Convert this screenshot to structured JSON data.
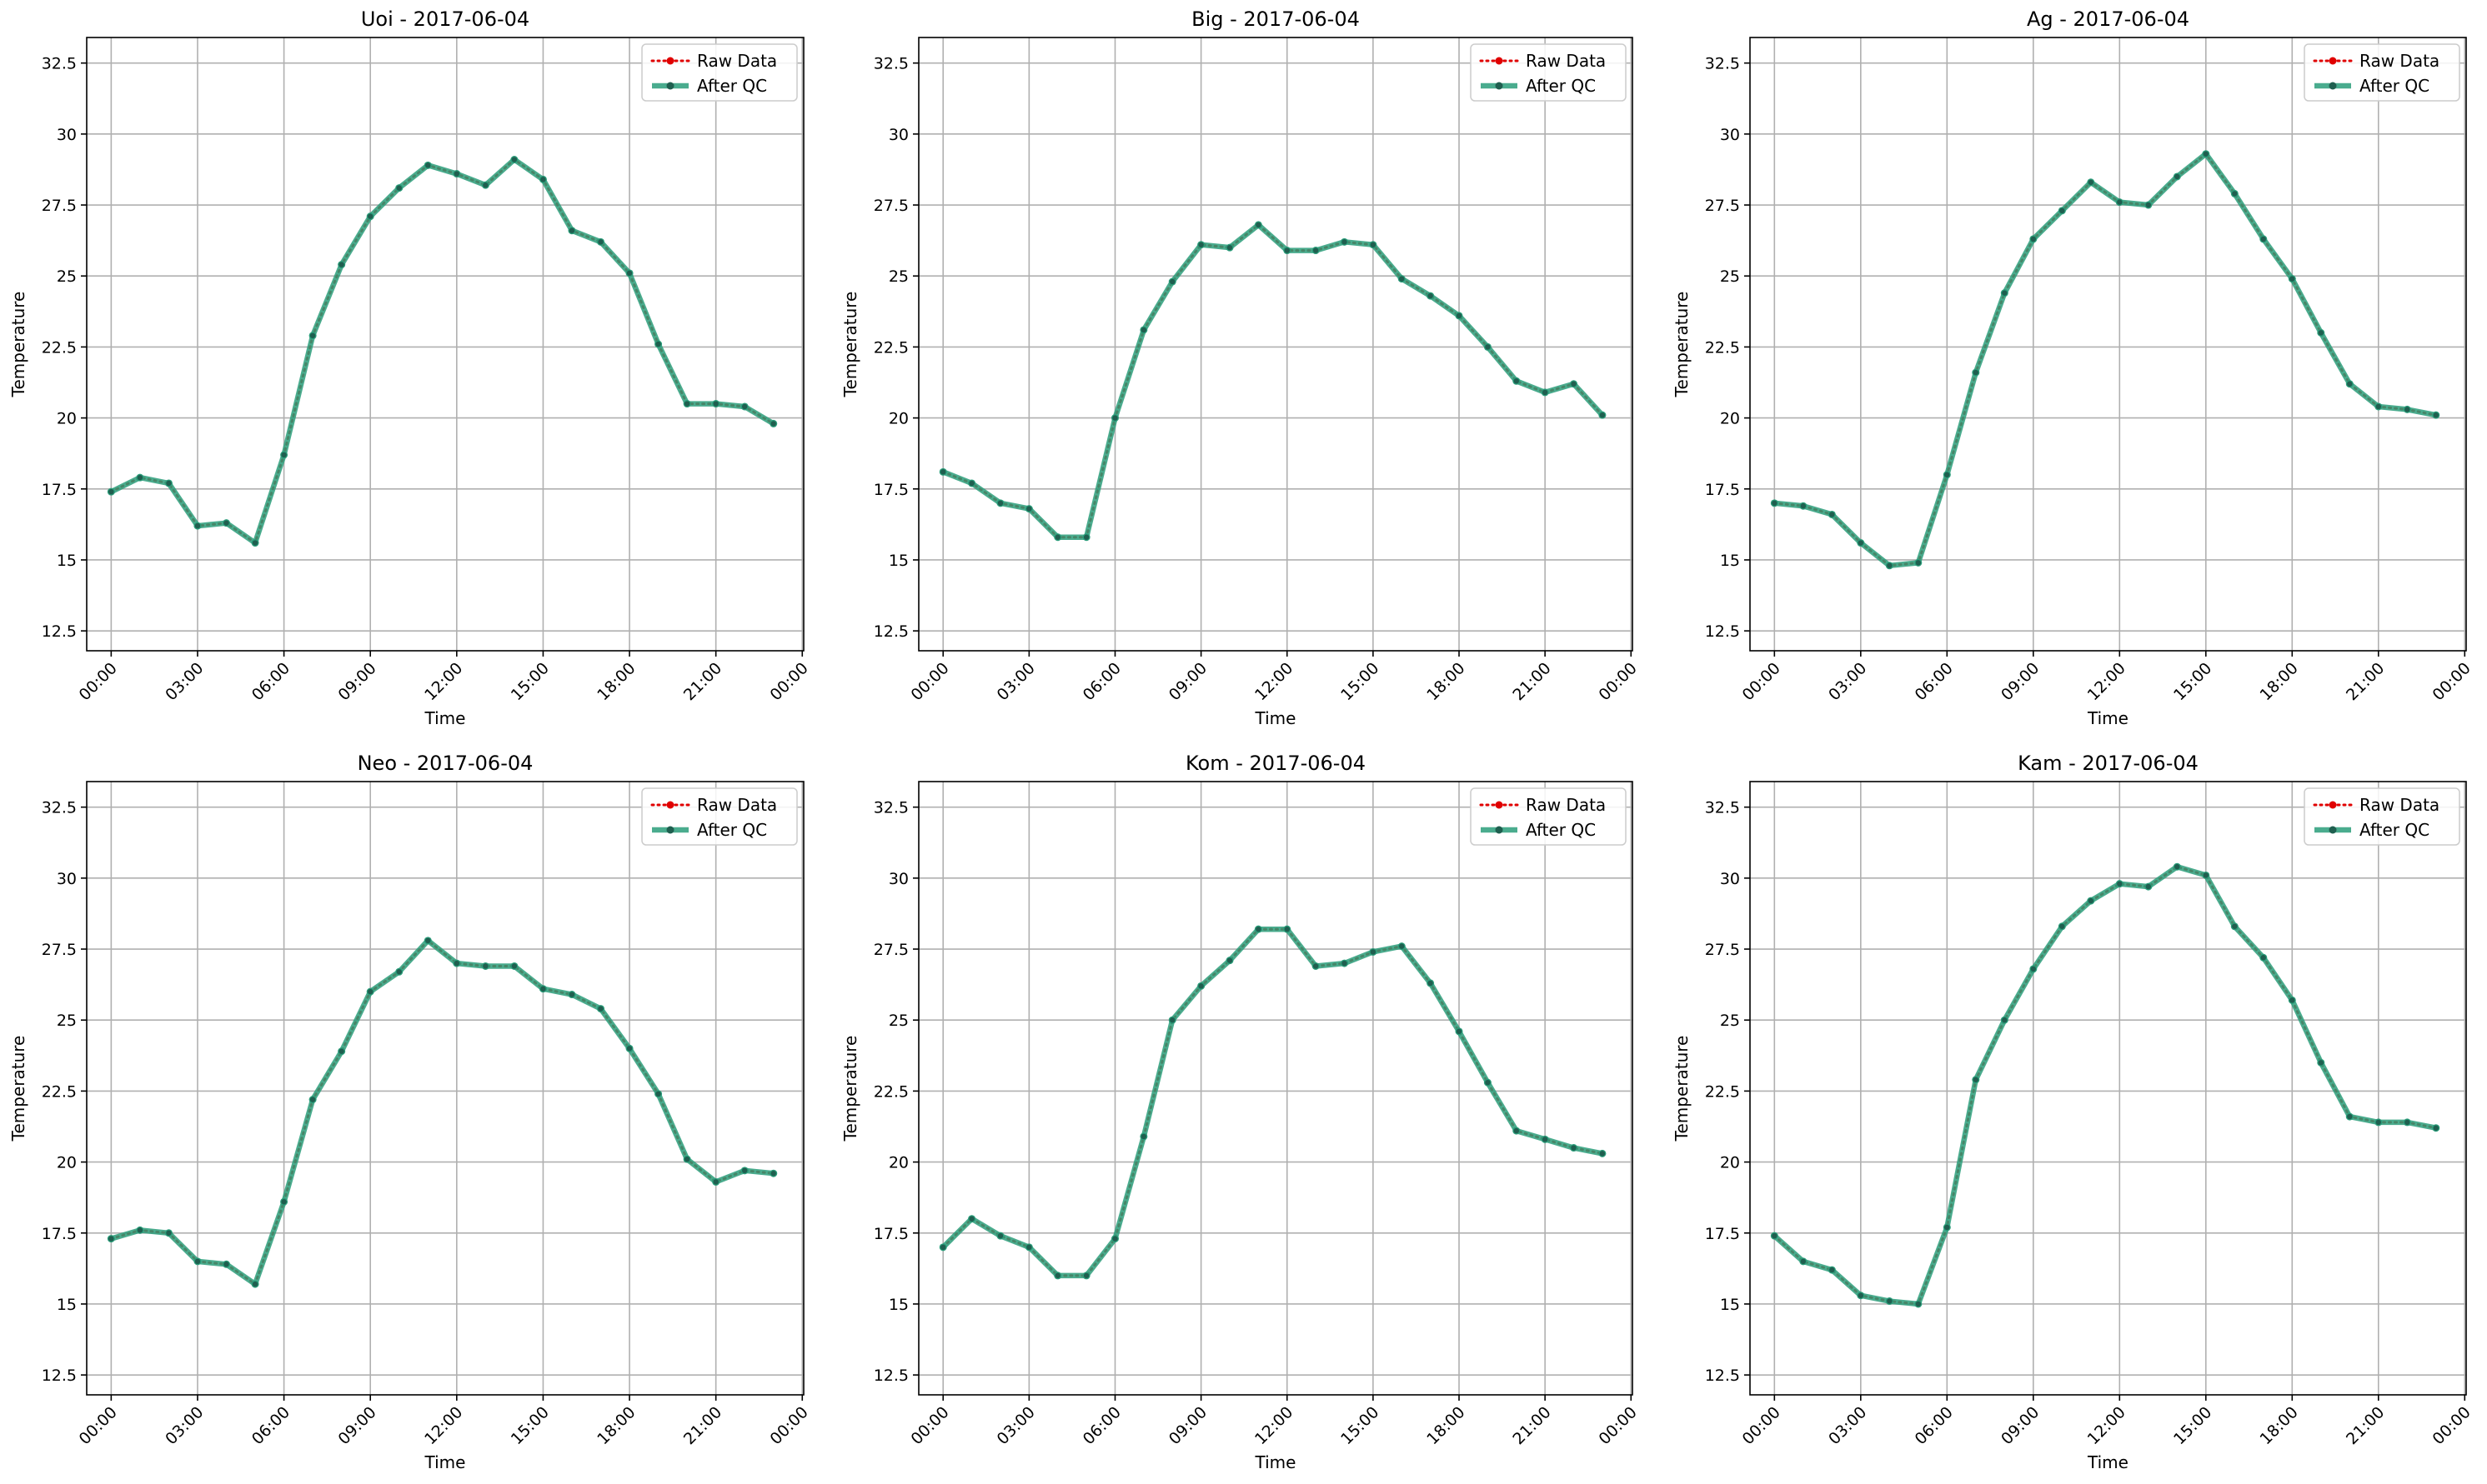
{
  "figure": {
    "background": "#ffffff"
  },
  "colors": {
    "raw": "#e00000",
    "qc": "#2a9d7a",
    "grid": "#b0b0b0",
    "axis": "#000000"
  },
  "chart_data": [
    {
      "type": "line",
      "title": "Uoi - 2017-06-04",
      "xlabel": "Time",
      "ylabel": "Temperature",
      "ylim": [
        11.8,
        33.4
      ],
      "xlim": [
        -0.85,
        24.05
      ],
      "yticks": [
        12.5,
        15.0,
        17.5,
        20.0,
        22.5,
        25.0,
        27.5,
        30.0,
        32.5
      ],
      "xticks": [
        "00:00",
        "03:00",
        "06:00",
        "09:00",
        "12:00",
        "15:00",
        "18:00",
        "21:00",
        "00:00"
      ],
      "grid": true,
      "legend_position": "top-right",
      "x": [
        0,
        1,
        2,
        3,
        4,
        5,
        6,
        7,
        8,
        9,
        10,
        11,
        12,
        13,
        14,
        15,
        16,
        17,
        18,
        19,
        20,
        21,
        22,
        23
      ],
      "series": [
        {
          "name": "Raw Data",
          "style": "dotted",
          "values": [
            17.4,
            17.9,
            17.7,
            16.2,
            16.3,
            15.6,
            18.7,
            22.9,
            25.4,
            27.1,
            28.1,
            28.9,
            28.6,
            28.2,
            29.1,
            28.4,
            26.6,
            26.2,
            25.1,
            22.6,
            20.5,
            20.5,
            20.4,
            19.8
          ]
        },
        {
          "name": "After QC",
          "style": "solid",
          "values": [
            17.4,
            17.9,
            17.7,
            16.2,
            16.3,
            15.6,
            18.7,
            22.9,
            25.4,
            27.1,
            28.1,
            28.9,
            28.6,
            28.2,
            29.1,
            28.4,
            26.6,
            26.2,
            25.1,
            22.6,
            20.5,
            20.5,
            20.4,
            19.8
          ]
        }
      ]
    },
    {
      "type": "line",
      "title": "Big - 2017-06-04",
      "xlabel": "Time",
      "ylabel": "Temperature",
      "ylim": [
        11.8,
        33.4
      ],
      "xlim": [
        -0.85,
        24.05
      ],
      "yticks": [
        12.5,
        15.0,
        17.5,
        20.0,
        22.5,
        25.0,
        27.5,
        30.0,
        32.5
      ],
      "xticks": [
        "00:00",
        "03:00",
        "06:00",
        "09:00",
        "12:00",
        "15:00",
        "18:00",
        "21:00",
        "00:00"
      ],
      "grid": true,
      "legend_position": "top-right",
      "x": [
        0,
        1,
        2,
        3,
        4,
        5,
        6,
        7,
        8,
        9,
        10,
        11,
        12,
        13,
        14,
        15,
        16,
        17,
        18,
        19,
        20,
        21,
        22,
        23
      ],
      "series": [
        {
          "name": "Raw Data",
          "style": "dotted",
          "values": [
            18.1,
            17.7,
            17.0,
            16.8,
            15.8,
            15.8,
            20.0,
            23.1,
            24.8,
            26.1,
            26.0,
            26.8,
            25.9,
            25.9,
            26.2,
            26.1,
            24.9,
            24.3,
            23.6,
            22.5,
            21.3,
            20.9,
            21.2,
            20.1
          ]
        },
        {
          "name": "After QC",
          "style": "solid",
          "values": [
            18.1,
            17.7,
            17.0,
            16.8,
            15.8,
            15.8,
            20.0,
            23.1,
            24.8,
            26.1,
            26.0,
            26.8,
            25.9,
            25.9,
            26.2,
            26.1,
            24.9,
            24.3,
            23.6,
            22.5,
            21.3,
            20.9,
            21.2,
            20.1
          ]
        }
      ]
    },
    {
      "type": "line",
      "title": "Ag - 2017-06-04",
      "xlabel": "Time",
      "ylabel": "Temperature",
      "ylim": [
        11.8,
        33.4
      ],
      "xlim": [
        -0.85,
        24.05
      ],
      "yticks": [
        12.5,
        15.0,
        17.5,
        20.0,
        22.5,
        25.0,
        27.5,
        30.0,
        32.5
      ],
      "xticks": [
        "00:00",
        "03:00",
        "06:00",
        "09:00",
        "12:00",
        "15:00",
        "18:00",
        "21:00",
        "00:00"
      ],
      "grid": true,
      "legend_position": "top-right",
      "x": [
        0,
        1,
        2,
        3,
        4,
        5,
        6,
        7,
        8,
        9,
        10,
        11,
        12,
        13,
        14,
        15,
        16,
        17,
        18,
        19,
        20,
        21,
        22,
        23
      ],
      "series": [
        {
          "name": "Raw Data",
          "style": "dotted",
          "values": [
            17.0,
            16.9,
            16.6,
            15.6,
            14.8,
            14.9,
            18.0,
            21.6,
            24.4,
            26.3,
            27.3,
            28.3,
            27.6,
            27.5,
            28.5,
            29.3,
            27.9,
            26.3,
            24.9,
            23.0,
            21.2,
            20.4,
            20.3,
            20.1
          ]
        },
        {
          "name": "After QC",
          "style": "solid",
          "values": [
            17.0,
            16.9,
            16.6,
            15.6,
            14.8,
            14.9,
            18.0,
            21.6,
            24.4,
            26.3,
            27.3,
            28.3,
            27.6,
            27.5,
            28.5,
            29.3,
            27.9,
            26.3,
            24.9,
            23.0,
            21.2,
            20.4,
            20.3,
            20.1
          ]
        }
      ]
    },
    {
      "type": "line",
      "title": "Neo - 2017-06-04",
      "xlabel": "Time",
      "ylabel": "Temperature",
      "ylim": [
        11.8,
        33.4
      ],
      "xlim": [
        -0.85,
        24.05
      ],
      "yticks": [
        12.5,
        15.0,
        17.5,
        20.0,
        22.5,
        25.0,
        27.5,
        30.0,
        32.5
      ],
      "xticks": [
        "00:00",
        "03:00",
        "06:00",
        "09:00",
        "12:00",
        "15:00",
        "18:00",
        "21:00",
        "00:00"
      ],
      "grid": true,
      "legend_position": "top-right",
      "x": [
        0,
        1,
        2,
        3,
        4,
        5,
        6,
        7,
        8,
        9,
        10,
        11,
        12,
        13,
        14,
        15,
        16,
        17,
        18,
        19,
        20,
        21,
        22,
        23
      ],
      "series": [
        {
          "name": "Raw Data",
          "style": "dotted",
          "values": [
            17.3,
            17.6,
            17.5,
            16.5,
            16.4,
            15.7,
            18.6,
            22.2,
            23.9,
            26.0,
            26.7,
            27.8,
            27.0,
            26.9,
            26.9,
            26.1,
            25.9,
            25.4,
            24.0,
            22.4,
            20.1,
            19.3,
            19.7,
            19.6
          ]
        },
        {
          "name": "After QC",
          "style": "solid",
          "values": [
            17.3,
            17.6,
            17.5,
            16.5,
            16.4,
            15.7,
            18.6,
            22.2,
            23.9,
            26.0,
            26.7,
            27.8,
            27.0,
            26.9,
            26.9,
            26.1,
            25.9,
            25.4,
            24.0,
            22.4,
            20.1,
            19.3,
            19.7,
            19.6
          ]
        }
      ]
    },
    {
      "type": "line",
      "title": "Kom - 2017-06-04",
      "xlabel": "Time",
      "ylabel": "Temperature",
      "ylim": [
        11.8,
        33.4
      ],
      "xlim": [
        -0.85,
        24.05
      ],
      "yticks": [
        12.5,
        15.0,
        17.5,
        20.0,
        22.5,
        25.0,
        27.5,
        30.0,
        32.5
      ],
      "xticks": [
        "00:00",
        "03:00",
        "06:00",
        "09:00",
        "12:00",
        "15:00",
        "18:00",
        "21:00",
        "00:00"
      ],
      "grid": true,
      "legend_position": "top-right",
      "x": [
        0,
        1,
        2,
        3,
        4,
        5,
        6,
        7,
        8,
        9,
        10,
        11,
        12,
        13,
        14,
        15,
        16,
        17,
        18,
        19,
        20,
        21,
        22,
        23
      ],
      "series": [
        {
          "name": "Raw Data",
          "style": "dotted",
          "values": [
            17.0,
            18.0,
            17.4,
            17.0,
            16.0,
            16.0,
            17.3,
            20.9,
            25.0,
            26.2,
            27.1,
            28.2,
            28.2,
            26.9,
            27.0,
            27.4,
            27.6,
            26.3,
            24.6,
            22.8,
            21.1,
            20.8,
            20.5,
            20.3
          ]
        },
        {
          "name": "After QC",
          "style": "solid",
          "values": [
            17.0,
            18.0,
            17.4,
            17.0,
            16.0,
            16.0,
            17.3,
            20.9,
            25.0,
            26.2,
            27.1,
            28.2,
            28.2,
            26.9,
            27.0,
            27.4,
            27.6,
            26.3,
            24.6,
            22.8,
            21.1,
            20.8,
            20.5,
            20.3
          ]
        }
      ]
    },
    {
      "type": "line",
      "title": "Kam - 2017-06-04",
      "xlabel": "Time",
      "ylabel": "Temperature",
      "ylim": [
        11.8,
        33.4
      ],
      "xlim": [
        -0.85,
        24.05
      ],
      "yticks": [
        12.5,
        15.0,
        17.5,
        20.0,
        22.5,
        25.0,
        27.5,
        30.0,
        32.5
      ],
      "xticks": [
        "00:00",
        "03:00",
        "06:00",
        "09:00",
        "12:00",
        "15:00",
        "18:00",
        "21:00",
        "00:00"
      ],
      "grid": true,
      "legend_position": "top-right",
      "x": [
        0,
        1,
        2,
        3,
        4,
        5,
        6,
        7,
        8,
        9,
        10,
        11,
        12,
        13,
        14,
        15,
        16,
        17,
        18,
        19,
        20,
        21,
        22,
        23
      ],
      "series": [
        {
          "name": "Raw Data",
          "style": "dotted",
          "values": [
            17.4,
            16.5,
            16.2,
            15.3,
            15.1,
            15.0,
            17.7,
            22.9,
            25.0,
            26.8,
            28.3,
            29.2,
            29.8,
            29.7,
            30.4,
            30.1,
            28.3,
            27.2,
            25.7,
            23.5,
            21.6,
            21.4,
            21.4,
            21.2
          ]
        },
        {
          "name": "After QC",
          "style": "solid",
          "values": [
            17.4,
            16.5,
            16.2,
            15.3,
            15.1,
            15.0,
            17.7,
            22.9,
            25.0,
            26.8,
            28.3,
            29.2,
            29.8,
            29.7,
            30.4,
            30.1,
            28.3,
            27.2,
            25.7,
            23.5,
            21.6,
            21.4,
            21.4,
            21.2
          ]
        }
      ]
    }
  ]
}
